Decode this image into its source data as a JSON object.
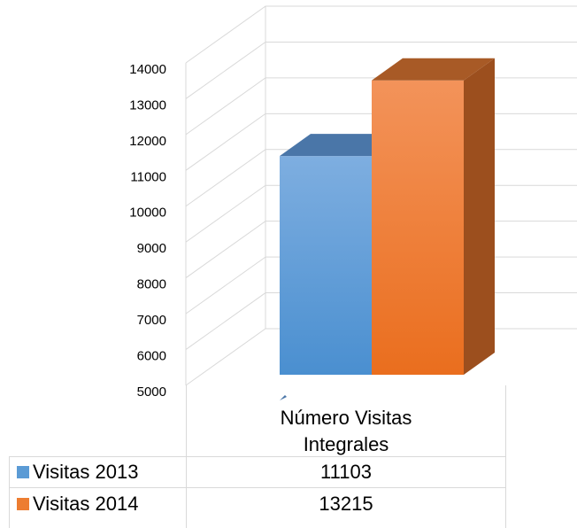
{
  "chart_data": {
    "type": "bar",
    "categories": [
      "Número Visitas Integrales"
    ],
    "series": [
      {
        "name": "Visitas 2013",
        "color": "#5b9bd5",
        "values": [
          11103
        ]
      },
      {
        "name": "Visitas 2014",
        "color": "#ed7d31",
        "values": [
          13215
        ]
      }
    ],
    "ylim": [
      5000,
      14000
    ],
    "yticks": [
      5000,
      6000,
      7000,
      8000,
      9000,
      10000,
      11000,
      12000,
      13000,
      14000
    ],
    "grid": true,
    "legend": "table"
  }
}
